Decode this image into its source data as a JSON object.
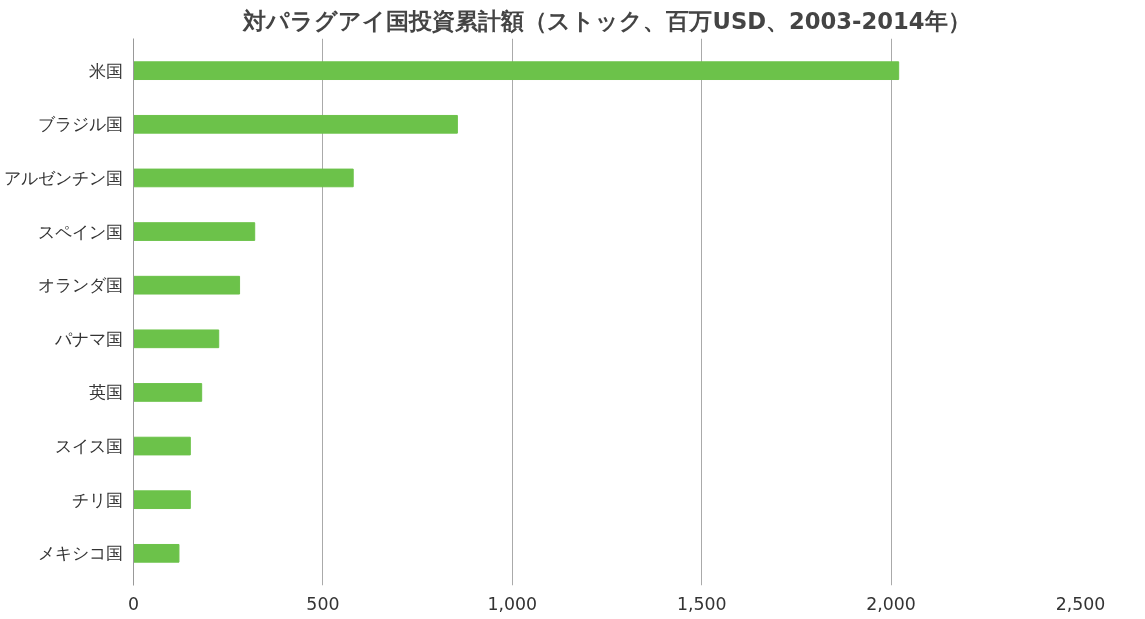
{
  "chart_data": {
    "type": "bar",
    "orientation": "horizontal",
    "title": "対パラグアイ国投資累計額（ストック、百万USD、2003-2014年）",
    "categories": [
      "米国",
      "ブラジル国",
      "アルゼンチン国",
      "スペイン国",
      "オランダ国",
      "パナマ国",
      "英国",
      "スイス国",
      "チリ国",
      "メキシコ国"
    ],
    "values": [
      2020,
      855,
      580,
      320,
      280,
      225,
      180,
      150,
      150,
      120
    ],
    "color": "#6cc24a",
    "xlim": [
      0,
      2500
    ],
    "xticks": [
      0,
      {
        "value": 500,
        "label": "500"
      },
      {
        "value": 1000,
        "label": "1,000"
      },
      {
        "value": 1500,
        "label": "1,500"
      },
      {
        "value": 2000,
        "label": "2,000"
      },
      {
        "value": 2500,
        "label": "2,500"
      }
    ],
    "grid": "x"
  }
}
